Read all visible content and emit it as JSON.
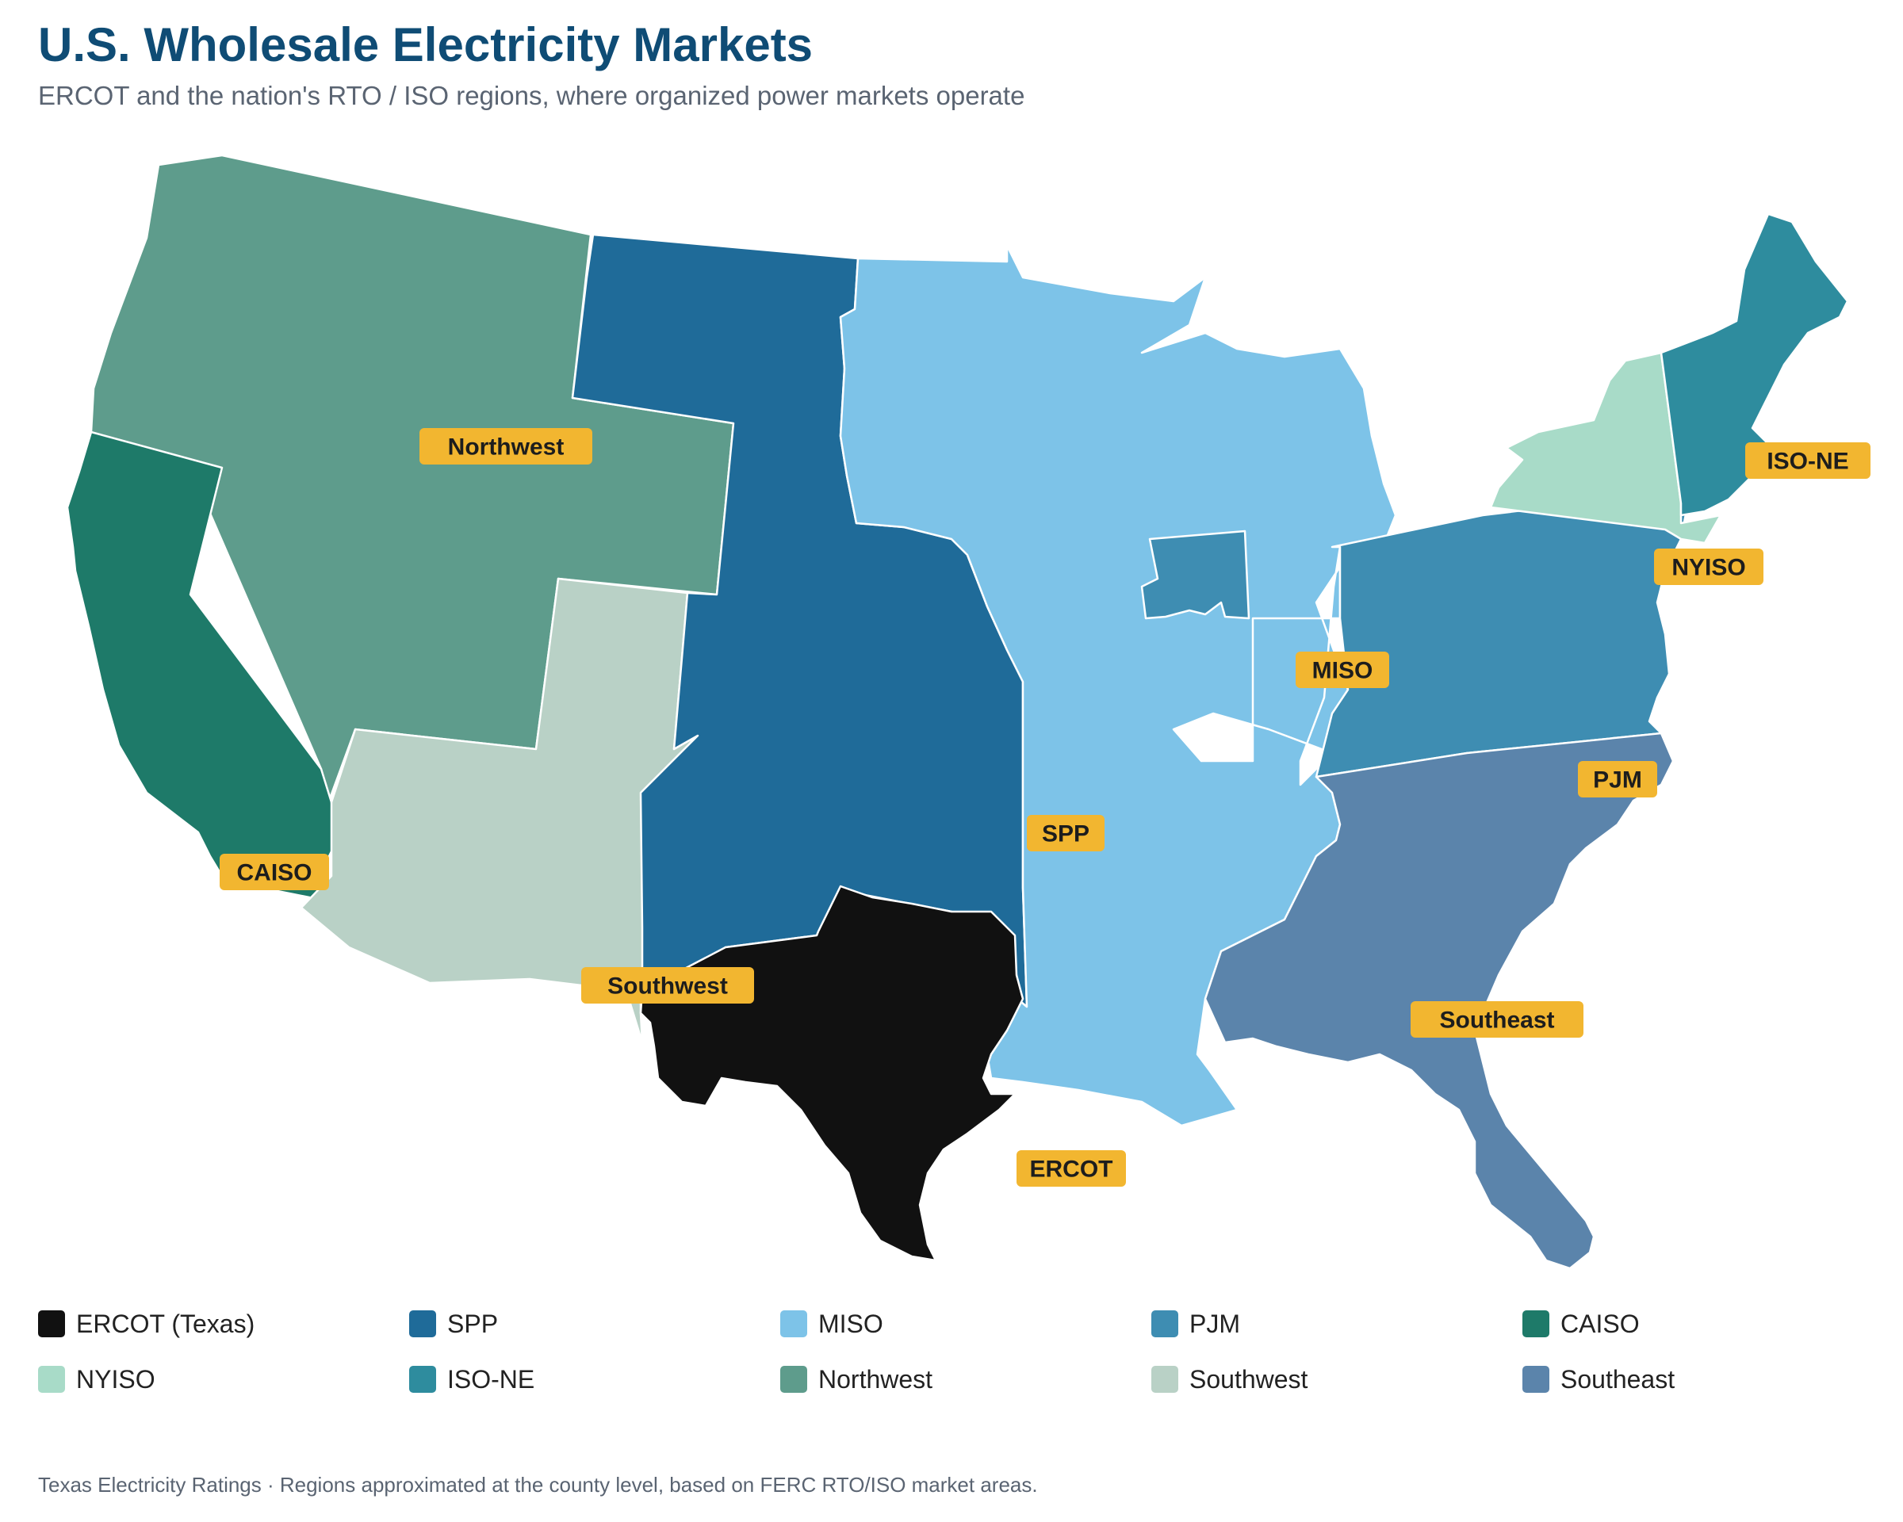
{
  "header": {
    "title": "U.S. Wholesale Electricity Markets",
    "subtitle": "ERCOT and the nation's RTO / ISO regions, where organized power markets operate"
  },
  "regions": [
    {
      "id": "northwest",
      "name": "Northwest",
      "color": "#5e9c8c"
    },
    {
      "id": "caiso",
      "name": "CAISO",
      "color": "#1e7a69"
    },
    {
      "id": "southwest",
      "name": "Southwest",
      "color": "#b9d1c6"
    },
    {
      "id": "spp",
      "name": "SPP",
      "color": "#1f6b99"
    },
    {
      "id": "miso",
      "name": "MISO",
      "color": "#7dc3e8"
    },
    {
      "id": "pjm",
      "name": "PJM",
      "color": "#3e8db2"
    },
    {
      "id": "nyiso",
      "name": "NYISO",
      "color": "#a8dbc8"
    },
    {
      "id": "isone",
      "name": "ISO-NE",
      "color": "#2e8c9e"
    },
    {
      "id": "southeast",
      "name": "Southeast",
      "color": "#5b84ab"
    },
    {
      "id": "ercot",
      "name": "ERCOT",
      "color": "#111111"
    }
  ],
  "map_labels": [
    "Northwest",
    "CAISO",
    "Southwest",
    "SPP",
    "MISO",
    "PJM",
    "NYISO",
    "ISO-NE",
    "Southeast",
    "ERCOT"
  ],
  "legend": [
    {
      "label": "ERCOT (Texas)",
      "color": "#111111"
    },
    {
      "label": "SPP",
      "color": "#1f6b99"
    },
    {
      "label": "MISO",
      "color": "#7dc3e8"
    },
    {
      "label": "PJM",
      "color": "#3e8db2"
    },
    {
      "label": "CAISO",
      "color": "#1e7a69"
    },
    {
      "label": "NYISO",
      "color": "#a8dbc8"
    },
    {
      "label": "ISO-NE",
      "color": "#2e8c9e"
    },
    {
      "label": "Northwest",
      "color": "#5e9c8c"
    },
    {
      "label": "Southwest",
      "color": "#b9d1c6"
    },
    {
      "label": "Southeast",
      "color": "#5b84ab"
    }
  ],
  "footer": {
    "note": "Texas Electricity Ratings · Regions approximated at the county level, based on FERC RTO/ISO market areas."
  }
}
